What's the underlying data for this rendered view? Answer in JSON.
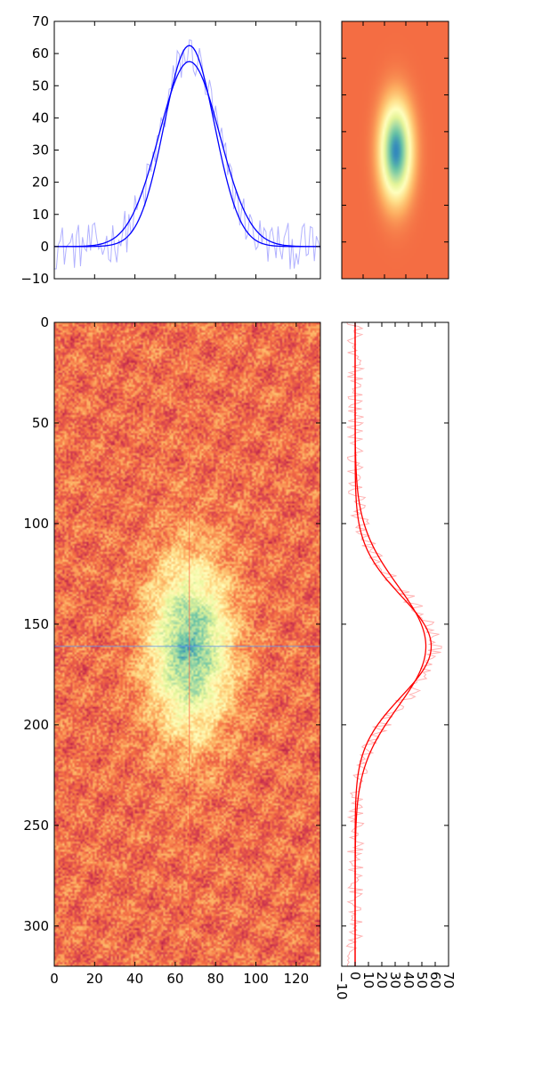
{
  "chart_data": [
    {
      "id": "top-profile",
      "type": "line",
      "xlim": [
        0,
        132
      ],
      "ylim": [
        -10,
        70
      ],
      "xticks": [
        0,
        20,
        40,
        60,
        80,
        100,
        120
      ],
      "yticks": [
        -10,
        0,
        10,
        20,
        30,
        40,
        50,
        60,
        70
      ],
      "ytick_labels": [
        "−10",
        "0",
        "10",
        "20",
        "30",
        "40",
        "50",
        "60",
        "70"
      ],
      "show_xtick_labels": false,
      "series": [
        {
          "role": "raw",
          "color": "#7f7fff",
          "alpha": 0.6,
          "noise_amplitude": 4,
          "model": {
            "amplitude": 60,
            "center": 67,
            "sigma": 14
          }
        },
        {
          "role": "fit",
          "color": "#0000ff",
          "model": {
            "amplitude": 62.5,
            "center": 67,
            "sigma": 12.5
          }
        },
        {
          "role": "fit",
          "color": "#0000ff",
          "model": {
            "amplitude": 57.5,
            "center": 67,
            "sigma": 15
          }
        }
      ]
    },
    {
      "id": "top-right-model-image",
      "type": "heatmap",
      "colormap": "Spectral",
      "background_color": "#f46d43",
      "blob": {
        "center_x": 0.5,
        "center_y": 0.5,
        "sigma_x": 0.1,
        "sigma_y": 0.125,
        "peak": 1.0
      },
      "show_tick_labels": false,
      "xticks_count": 5,
      "yticks_count": 7
    },
    {
      "id": "main-image",
      "type": "heatmap",
      "colormap": "Spectral",
      "xlim": [
        0,
        132
      ],
      "ylim": [
        320,
        0
      ],
      "xticks": [
        0,
        20,
        40,
        60,
        80,
        100,
        120
      ],
      "yticks": [
        0,
        50,
        100,
        150,
        200,
        250,
        300
      ],
      "blob": {
        "center_x": 67,
        "center_y": 161,
        "sigma_x": 14,
        "sigma_y": 30,
        "amplitude": 60
      },
      "background_level": 0,
      "noise_amplitude": 10,
      "crosshair": {
        "x": 67,
        "y": 161,
        "vertical_color": "#ff6347",
        "horizontal_color": "#6495ed"
      }
    },
    {
      "id": "right-profile",
      "type": "line",
      "orientation": "vertical",
      "xlim": [
        -10,
        70
      ],
      "ylim": [
        320,
        0
      ],
      "xticks": [
        -10,
        0,
        10,
        20,
        30,
        40,
        50,
        60,
        70
      ],
      "xtick_labels": [
        "−10",
        "0",
        "10",
        "20",
        "30",
        "40",
        "50",
        "60",
        "70"
      ],
      "xtick_label_rotation": -90,
      "show_ytick_labels": false,
      "series": [
        {
          "role": "raw",
          "color": "#ff7f7f",
          "alpha": 0.6,
          "noise_amplitude": 4,
          "model": {
            "amplitude": 60,
            "center": 161,
            "sigma": 27
          }
        },
        {
          "role": "fit",
          "color": "#ff0000",
          "model": {
            "amplitude": 57,
            "center": 161,
            "sigma": 25
          }
        },
        {
          "role": "fit",
          "color": "#ff0000",
          "model": {
            "amplitude": 53,
            "center": 161,
            "sigma": 30
          }
        }
      ]
    }
  ]
}
